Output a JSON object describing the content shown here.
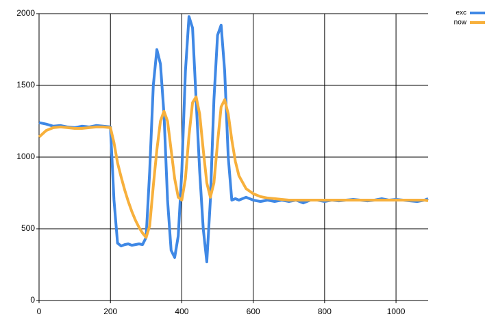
{
  "chart_data": {
    "type": "line",
    "x": [
      0,
      20,
      40,
      60,
      80,
      100,
      120,
      140,
      160,
      180,
      200,
      210,
      220,
      230,
      240,
      250,
      260,
      270,
      280,
      290,
      300,
      310,
      320,
      330,
      340,
      350,
      360,
      370,
      380,
      390,
      400,
      410,
      420,
      430,
      440,
      450,
      460,
      470,
      480,
      490,
      500,
      510,
      520,
      530,
      540,
      550,
      560,
      580,
      600,
      620,
      640,
      660,
      680,
      700,
      720,
      740,
      760,
      780,
      800,
      820,
      840,
      860,
      880,
      900,
      920,
      940,
      960,
      980,
      1000,
      1020,
      1040,
      1060,
      1080,
      1090
    ],
    "series": [
      {
        "name": "exc",
        "color": "#3f88e5",
        "values": [
          1240,
          1230,
          1215,
          1220,
          1210,
          1205,
          1215,
          1210,
          1220,
          1215,
          1210,
          700,
          400,
          380,
          390,
          395,
          385,
          390,
          395,
          390,
          440,
          900,
          1500,
          1750,
          1650,
          1300,
          700,
          350,
          300,
          450,
          900,
          1600,
          1980,
          1900,
          1400,
          900,
          500,
          270,
          700,
          1400,
          1850,
          1920,
          1600,
          1000,
          700,
          710,
          700,
          720,
          700,
          690,
          700,
          690,
          700,
          690,
          700,
          680,
          700,
          700,
          690,
          700,
          695,
          700,
          705,
          700,
          695,
          700,
          710,
          700,
          705,
          700,
          695,
          690,
          700,
          710
        ]
      },
      {
        "name": "now",
        "color": "#f7b03c",
        "values": [
          1140,
          1185,
          1205,
          1210,
          1205,
          1200,
          1200,
          1205,
          1210,
          1210,
          1205,
          1100,
          960,
          860,
          770,
          690,
          620,
          560,
          510,
          470,
          440,
          520,
          800,
          1050,
          1250,
          1320,
          1250,
          1050,
          850,
          720,
          700,
          850,
          1150,
          1380,
          1420,
          1300,
          1050,
          820,
          720,
          820,
          1100,
          1350,
          1400,
          1300,
          1120,
          970,
          870,
          780,
          745,
          725,
          715,
          710,
          705,
          700,
          700,
          700,
          700,
          700,
          700,
          700,
          700,
          700,
          700,
          700,
          700,
          700,
          700,
          700,
          700,
          700,
          700,
          700,
          700,
          695
        ]
      }
    ],
    "xlim": [
      0,
      1090
    ],
    "ylim": [
      0,
      2000
    ],
    "xticks": [
      0,
      200,
      400,
      600,
      800,
      1000
    ],
    "yticks": [
      0,
      500,
      1000,
      1500,
      2000
    ],
    "grid": true
  }
}
